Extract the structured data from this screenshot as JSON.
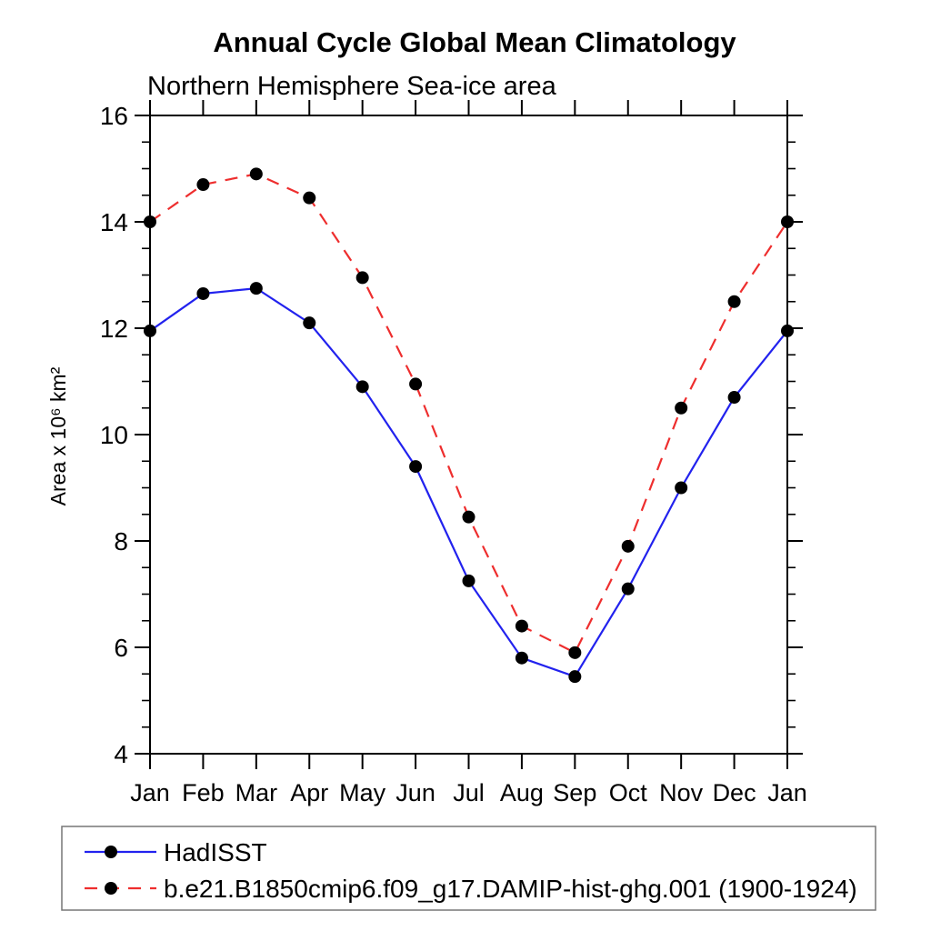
{
  "colors": {
    "background": "#ffffff",
    "axis": "#000000",
    "marker": "#000000",
    "legend_border": "#777777",
    "hadisst_line": "#2222ee",
    "model_line": "#ee2e2e"
  },
  "chart_data": {
    "type": "line",
    "title": "Annual Cycle Global Mean Climatology",
    "subtitle": "Northern Hemisphere Sea-ice area",
    "ylabel": "Area x 10⁶ km²",
    "xlabel": "",
    "categories": [
      "Jan",
      "Feb",
      "Mar",
      "Apr",
      "May",
      "Jun",
      "Jul",
      "Aug",
      "Sep",
      "Oct",
      "Nov",
      "Dec",
      "Jan"
    ],
    "series": [
      {
        "name": "HadISST",
        "color": "#2222ee",
        "line_style": "solid",
        "marker": "filled-circle",
        "marker_color": "#000000",
        "values": [
          11.95,
          12.65,
          12.75,
          12.1,
          10.9,
          9.4,
          7.25,
          5.8,
          5.45,
          7.1,
          9.0,
          10.7,
          11.95
        ]
      },
      {
        "name": "b.e21.B1850cmip6.f09_g17.DAMIP-hist-ghg.001 (1900-1924)",
        "color": "#ee2e2e",
        "line_style": "dashed",
        "marker": "filled-circle",
        "marker_color": "#000000",
        "values": [
          14.0,
          14.7,
          14.9,
          14.45,
          12.95,
          10.95,
          8.45,
          6.4,
          5.9,
          7.9,
          10.5,
          12.5,
          14.0
        ]
      }
    ],
    "ylim": [
      4,
      16
    ],
    "y_major_ticks": [
      4,
      6,
      8,
      10,
      12,
      14,
      16
    ],
    "y_tick_labels": [
      "4",
      "6",
      "8",
      "10",
      "12",
      "14",
      "16"
    ],
    "y_minor_step": 0.5,
    "grid": false,
    "legend_position": "bottom-left-box"
  }
}
